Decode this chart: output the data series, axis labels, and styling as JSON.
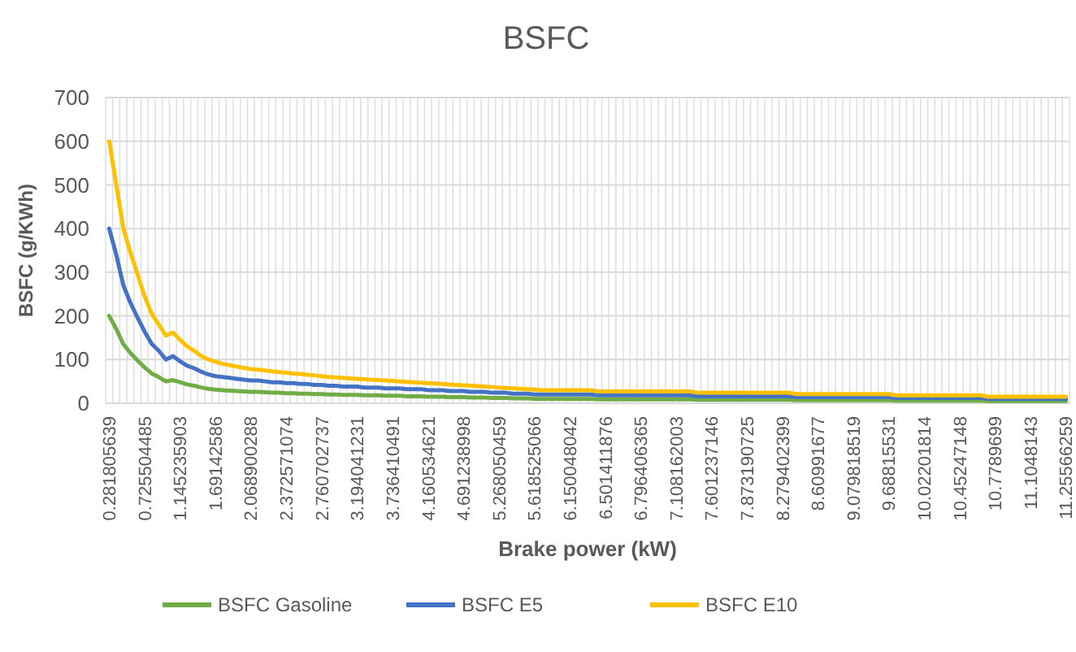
{
  "chart_data": {
    "type": "line",
    "title": "BSFC",
    "xlabel": "Brake power (kW)",
    "ylabel": "BSFC (g/KWh)",
    "categories": [
      "0.281805639",
      null,
      null,
      null,
      null,
      "0.725504485",
      null,
      null,
      null,
      null,
      "1.145235903",
      null,
      null,
      null,
      null,
      "1.69142586",
      null,
      null,
      null,
      null,
      "2.068900288",
      null,
      null,
      null,
      null,
      "2.372571074",
      null,
      null,
      null,
      null,
      "2.760702737",
      null,
      null,
      null,
      null,
      "3.194041231",
      null,
      null,
      null,
      null,
      "3.736410491",
      null,
      null,
      null,
      null,
      "4.160534621",
      null,
      null,
      null,
      null,
      "4.691238998",
      null,
      null,
      null,
      null,
      "5.268050459",
      null,
      null,
      null,
      null,
      "5.618525066",
      null,
      null,
      null,
      null,
      "6.150048042",
      null,
      null,
      null,
      null,
      "6.501411876",
      null,
      null,
      null,
      null,
      "6.796406365",
      null,
      null,
      null,
      null,
      "7.108162003",
      null,
      null,
      null,
      null,
      "7.601237146",
      null,
      null,
      null,
      null,
      "7.873190725",
      null,
      null,
      null,
      null,
      "8.279402399",
      null,
      null,
      null,
      null,
      "8.60991677",
      null,
      null,
      null,
      null,
      "9.079818519",
      null,
      null,
      null,
      null,
      "9.68815531",
      null,
      null,
      null,
      null,
      "10.02201814",
      null,
      null,
      null,
      null,
      "10.45247148",
      null,
      null,
      null,
      null,
      "10.7789699",
      null,
      null,
      null,
      null,
      "11.1048143",
      null,
      null,
      null,
      null,
      "11.25566259"
    ],
    "series": [
      {
        "name": "BSFC Gasoline",
        "color": "#70ad47",
        "values": [
          200,
          170,
          135,
          115,
          98,
          82,
          68,
          60,
          50,
          53,
          48,
          43,
          40,
          36,
          33,
          31,
          30,
          29,
          28,
          27,
          26,
          26,
          25,
          24,
          24,
          23,
          23,
          22,
          22,
          21,
          21,
          20,
          20,
          19,
          19,
          19,
          18,
          18,
          18,
          17,
          17,
          17,
          16,
          16,
          16,
          15,
          15,
          15,
          14,
          14,
          14,
          13,
          13,
          13,
          12,
          12,
          12,
          11,
          11,
          11,
          10,
          10,
          10,
          10,
          10,
          10,
          10,
          10,
          10,
          9,
          9,
          9,
          9,
          9,
          9,
          9,
          9,
          9,
          9,
          9,
          9,
          9,
          9,
          8,
          8,
          8,
          8,
          8,
          8,
          8,
          8,
          8,
          8,
          8,
          8,
          8,
          8,
          7,
          7,
          7,
          7,
          7,
          7,
          7,
          7,
          7,
          7,
          7,
          7,
          7,
          7,
          6,
          6,
          6,
          6,
          6,
          6,
          6,
          6,
          6,
          6,
          6,
          6,
          6,
          5,
          5,
          5,
          5,
          5,
          5,
          5,
          5,
          5,
          5,
          5,
          5
        ]
      },
      {
        "name": "BSFC E5",
        "color": "#4472c4",
        "values": [
          400,
          340,
          270,
          230,
          196,
          164,
          136,
          120,
          100,
          108,
          96,
          86,
          80,
          72,
          66,
          62,
          60,
          58,
          56,
          54,
          52,
          52,
          50,
          48,
          48,
          46,
          46,
          44,
          44,
          42,
          42,
          40,
          40,
          38,
          38,
          38,
          36,
          36,
          36,
          34,
          34,
          34,
          32,
          32,
          32,
          30,
          30,
          30,
          28,
          28,
          28,
          26,
          26,
          26,
          24,
          24,
          24,
          22,
          22,
          22,
          20,
          20,
          20,
          20,
          20,
          20,
          20,
          20,
          20,
          18,
          18,
          18,
          18,
          18,
          18,
          18,
          18,
          18,
          18,
          18,
          18,
          18,
          18,
          16,
          16,
          16,
          16,
          16,
          16,
          16,
          16,
          16,
          16,
          16,
          16,
          16,
          16,
          14,
          14,
          14,
          14,
          14,
          14,
          14,
          14,
          14,
          14,
          14,
          14,
          14,
          14,
          12,
          12,
          12,
          12,
          12,
          12,
          12,
          12,
          12,
          12,
          12,
          12,
          12,
          10,
          10,
          10,
          10,
          10,
          10,
          10,
          10,
          10,
          10,
          10,
          10
        ]
      },
      {
        "name": "BSFC E10",
        "color": "#ffc000",
        "values": [
          600,
          500,
          400,
          345,
          295,
          245,
          205,
          180,
          155,
          162,
          145,
          130,
          120,
          108,
          100,
          95,
          90,
          87,
          84,
          81,
          78,
          77,
          75,
          73,
          71,
          70,
          68,
          67,
          65,
          64,
          62,
          60,
          59,
          58,
          57,
          56,
          55,
          54,
          53,
          52,
          51,
          50,
          49,
          48,
          47,
          46,
          45,
          44,
          43,
          42,
          41,
          40,
          39,
          38,
          37,
          36,
          35,
          34,
          33,
          32,
          31,
          30,
          30,
          30,
          30,
          30,
          30,
          30,
          30,
          27,
          27,
          27,
          27,
          27,
          27,
          27,
          27,
          27,
          27,
          27,
          27,
          27,
          27,
          24,
          24,
          24,
          24,
          24,
          24,
          24,
          24,
          24,
          24,
          24,
          24,
          24,
          24,
          21,
          21,
          21,
          21,
          21,
          21,
          21,
          21,
          21,
          21,
          21,
          21,
          21,
          21,
          18,
          18,
          18,
          18,
          18,
          18,
          18,
          18,
          18,
          18,
          18,
          18,
          18,
          15,
          15,
          15,
          15,
          15,
          15,
          15,
          15,
          15,
          15,
          15,
          15
        ]
      }
    ],
    "ylim": [
      0,
      700
    ],
    "yticks": [
      0,
      100,
      200,
      300,
      400,
      500,
      600,
      700
    ],
    "grid": true,
    "legend": "bottom"
  }
}
